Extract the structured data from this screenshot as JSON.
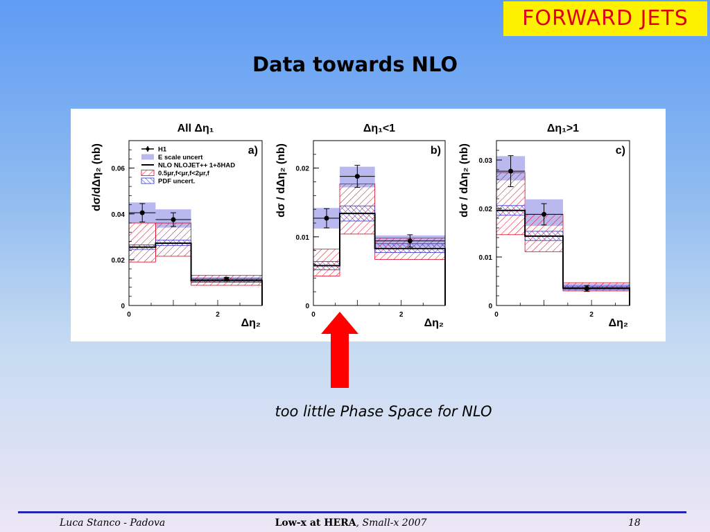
{
  "badge": "FORWARD JETS",
  "title": "Data towards NLO",
  "caption": "too little Phase Space for NLO",
  "footer": {
    "left": "Luca Stanco - Padova",
    "center_bold": "Low-x at HERA",
    "center_rest": ", Small-x 2007",
    "page": "18"
  },
  "colors": {
    "escale": "#b9b9ef",
    "scale_hatch": "#e0001b",
    "pdf_hatch": "#2b2bd6",
    "nlo": "#000000",
    "arrow": "#ff0000"
  },
  "chart_data": [
    {
      "type": "step-histogram",
      "panel_label": "a)",
      "title": "All Δη₁",
      "ylabel": "dσ/dΔη₂ (nb)",
      "xlabel": "Δη₂",
      "xlim": [
        0,
        3
      ],
      "ylim": [
        0,
        0.072
      ],
      "yticks": [
        "0",
        "0.02",
        "0.04",
        "0.06"
      ],
      "xticks": [
        "0",
        "2"
      ],
      "bins": [
        [
          0,
          0.6
        ],
        [
          0.6,
          1.4
        ],
        [
          1.4,
          3.0
        ]
      ],
      "legend": [
        "H1",
        "E scale uncert",
        "NLO NLOJET++ 1+δHAD",
        "0.5μr,f<μr,f<2μr,f",
        "PDF uncert."
      ],
      "series": [
        {
          "name": "H1",
          "x": [
            0.3,
            1.0,
            2.2
          ],
          "values": [
            0.0405,
            0.0375,
            0.0115
          ],
          "err": [
            0.004,
            0.003,
            0.0008
          ]
        },
        {
          "name": "E scale uncert",
          "low": [
            0.036,
            0.034,
            0.0105
          ],
          "high": [
            0.045,
            0.042,
            0.0125
          ]
        },
        {
          "name": "NLO NLOJET++ 1+δHAD",
          "values": [
            0.0255,
            0.0272,
            0.0108
          ]
        },
        {
          "name": "0.5μr,f<μr,f<2μr,f",
          "low": [
            0.019,
            0.0215,
            0.0088
          ],
          "high": [
            0.036,
            0.036,
            0.0132
          ]
        },
        {
          "name": "PDF uncert.",
          "low": [
            0.0245,
            0.0262,
            0.0101
          ],
          "high": [
            0.0265,
            0.0285,
            0.0115
          ]
        }
      ]
    },
    {
      "type": "step-histogram",
      "panel_label": "b)",
      "title": "Δη₁<1",
      "ylabel": "dσ / dΔη₂ (nb)",
      "xlabel": "Δη₂",
      "xlim": [
        0,
        3
      ],
      "ylim": [
        0,
        0.024
      ],
      "yticks": [
        "0",
        "0.01",
        "0.02"
      ],
      "xticks": [
        "0",
        "2"
      ],
      "bins": [
        [
          0,
          0.6
        ],
        [
          0.6,
          1.4
        ],
        [
          1.4,
          3.0
        ]
      ],
      "series": [
        {
          "name": "H1",
          "x": [
            0.3,
            1.0,
            2.2
          ],
          "values": [
            0.0127,
            0.0188,
            0.0094
          ],
          "err": [
            0.0014,
            0.0016,
            0.0009
          ]
        },
        {
          "name": "E scale uncert",
          "low": [
            0.0112,
            0.0172,
            0.0085
          ],
          "high": [
            0.0142,
            0.0202,
            0.0102
          ]
        },
        {
          "name": "NLO NLOJET++ 1+δHAD",
          "values": [
            0.0058,
            0.0134,
            0.0083
          ]
        },
        {
          "name": "0.5μr,f<μr,f<2μr,f",
          "low": [
            0.0043,
            0.0104,
            0.0067
          ],
          "high": [
            0.0082,
            0.0177,
            0.0098
          ]
        },
        {
          "name": "PDF uncert.",
          "low": [
            0.0052,
            0.0123,
            0.0077
          ],
          "high": [
            0.0064,
            0.0145,
            0.009
          ]
        }
      ]
    },
    {
      "type": "step-histogram",
      "panel_label": "c)",
      "title": "Δη₁>1",
      "ylabel": "dσ / dΔη₂ (nb)",
      "xlabel": "Δη₂",
      "xlim": [
        0,
        2.8
      ],
      "ylim": [
        0,
        0.034
      ],
      "yticks": [
        "0",
        "0.01",
        "0.02",
        "0.03"
      ],
      "xticks": [
        "0",
        "2"
      ],
      "bins": [
        [
          0,
          0.6
        ],
        [
          0.6,
          1.4
        ],
        [
          1.4,
          2.8
        ]
      ],
      "series": [
        {
          "name": "H1",
          "x": [
            0.3,
            1.0,
            1.9
          ],
          "values": [
            0.0277,
            0.0188,
            0.0035
          ],
          "err": [
            0.0032,
            0.0022,
            0.0006
          ]
        },
        {
          "name": "E scale uncert",
          "low": [
            0.0258,
            0.0164,
            0.0031
          ],
          "high": [
            0.0308,
            0.0219,
            0.0045
          ]
        },
        {
          "name": "NLO NLOJET++ 1+δHAD",
          "values": [
            0.0196,
            0.0143,
            0.0036
          ]
        },
        {
          "name": "0.5μr,f<μr,f<2μr,f",
          "low": [
            0.0146,
            0.0111,
            0.003
          ],
          "high": [
            0.0274,
            0.0188,
            0.0047
          ]
        },
        {
          "name": "PDF uncert.",
          "low": [
            0.0186,
            0.0134,
            0.0033
          ],
          "high": [
            0.0206,
            0.0153,
            0.004
          ]
        }
      ]
    }
  ]
}
